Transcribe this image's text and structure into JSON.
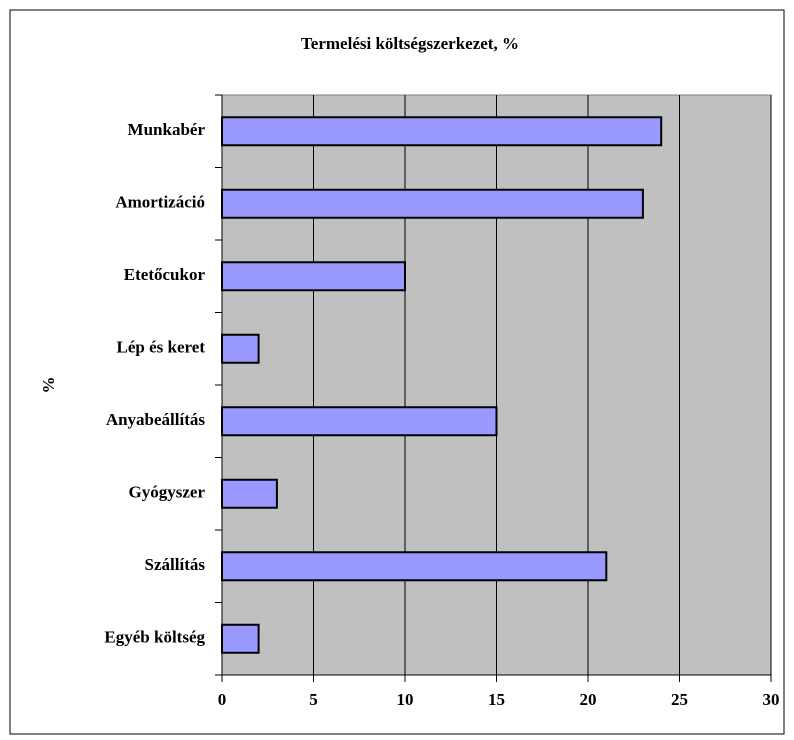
{
  "chart_data": {
    "type": "bar",
    "orientation": "horizontal",
    "title": "Termelési költségszerkezet, %",
    "y_label": "%",
    "categories": [
      "Munkabér",
      "Amortizáció",
      "Etetőcukor",
      "Lép és keret",
      "Anyabeállítás",
      "Gyógyszer",
      "Szállítás",
      "Egyéb költség"
    ],
    "values": [
      24,
      23,
      10,
      2,
      15,
      3,
      21,
      2
    ],
    "color": "#9999ff",
    "xlim": [
      0,
      30
    ],
    "xticks": [
      0,
      5,
      10,
      15,
      20,
      25,
      30
    ],
    "grid": true
  }
}
